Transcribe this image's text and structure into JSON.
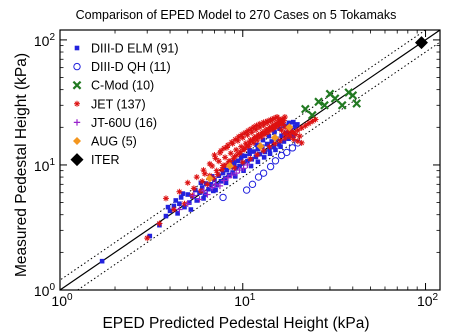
{
  "chart_data": {
    "type": "scatter",
    "title": "Comparison of EPED Model to 270 Cases on 5 Tokamaks",
    "xlabel": "EPED Predicted Pedestal Height (kPa)",
    "ylabel": "Measured Pedestal Height (kPa)",
    "xscale": "log",
    "yscale": "log",
    "xlim": [
      1,
      120
    ],
    "ylim": [
      1,
      120
    ],
    "x_ticks": [
      {
        "value": 1,
        "base": "10",
        "exp": "0"
      },
      {
        "value": 10,
        "base": "10",
        "exp": "1"
      },
      {
        "value": 100,
        "base": "10",
        "exp": "2"
      }
    ],
    "y_ticks": [
      {
        "value": 1,
        "base": "10",
        "exp": "0"
      },
      {
        "value": 10,
        "base": "10",
        "exp": "1"
      },
      {
        "value": 100,
        "base": "10",
        "exp": "2"
      }
    ],
    "legend_position": "top-left",
    "reference_lines": [
      {
        "slope": 1.0,
        "style": "solid"
      },
      {
        "slope": 1.2,
        "style": "dotted"
      },
      {
        "slope": 0.8,
        "style": "dotted"
      }
    ],
    "series": [
      {
        "name": "DIII-D ELM (91)",
        "marker": "square",
        "color": "#2222dd",
        "points": [
          [
            1.7,
            1.7
          ],
          [
            3.1,
            2.7
          ],
          [
            3.5,
            3.3
          ],
          [
            3.8,
            3.9
          ],
          [
            4.0,
            4.3
          ],
          [
            4.2,
            4.7
          ],
          [
            4.3,
            5.2
          ],
          [
            4.5,
            4.9
          ],
          [
            4.6,
            5.5
          ],
          [
            4.8,
            4.6
          ],
          [
            5.0,
            5.8
          ],
          [
            5.1,
            5.0
          ],
          [
            5.3,
            5.6
          ],
          [
            5.5,
            6.3
          ],
          [
            5.6,
            5.2
          ],
          [
            5.8,
            6.0
          ],
          [
            6.0,
            6.6
          ],
          [
            6.2,
            5.8
          ],
          [
            6.3,
            7.1
          ],
          [
            6.5,
            6.4
          ],
          [
            6.7,
            7.0
          ],
          [
            6.9,
            6.2
          ],
          [
            7.0,
            7.6
          ],
          [
            7.2,
            6.9
          ],
          [
            7.4,
            8.2
          ],
          [
            7.6,
            7.4
          ],
          [
            7.8,
            8.6
          ],
          [
            8.0,
            7.8
          ],
          [
            8.2,
            9.1
          ],
          [
            8.4,
            8.3
          ],
          [
            8.6,
            9.6
          ],
          [
            8.8,
            8.7
          ],
          [
            9.0,
            10.2
          ],
          [
            9.2,
            9.4
          ],
          [
            9.4,
            10.8
          ],
          [
            9.6,
            9.8
          ],
          [
            9.8,
            11.3
          ],
          [
            10.0,
            10.3
          ],
          [
            10.3,
            11.8
          ],
          [
            10.6,
            10.7
          ],
          [
            10.9,
            12.3
          ],
          [
            11.2,
            11.1
          ],
          [
            11.5,
            12.8
          ],
          [
            11.8,
            11.6
          ],
          [
            12.1,
            13.4
          ],
          [
            12.4,
            12.2
          ],
          [
            12.8,
            14.0
          ],
          [
            13.2,
            12.7
          ],
          [
            13.6,
            14.7
          ],
          [
            14.0,
            13.3
          ],
          [
            14.4,
            15.4
          ],
          [
            14.8,
            13.9
          ],
          [
            15.3,
            16.2
          ],
          [
            15.8,
            14.6
          ],
          [
            16.3,
            17.1
          ],
          [
            16.8,
            15.4
          ],
          [
            17.3,
            18.0
          ],
          [
            17.8,
            16.2
          ],
          [
            18.3,
            19.0
          ],
          [
            18.8,
            17.1
          ],
          [
            19.3,
            20.2
          ],
          [
            4.4,
            4.1
          ],
          [
            5.2,
            4.4
          ],
          [
            6.1,
            5.4
          ],
          [
            7.1,
            6.3
          ],
          [
            8.1,
            7.2
          ],
          [
            9.1,
            8.1
          ],
          [
            10.1,
            9.0
          ],
          [
            11.1,
            9.8
          ],
          [
            12.1,
            10.6
          ],
          [
            13.1,
            11.5
          ],
          [
            14.1,
            12.3
          ],
          [
            15.1,
            13.2
          ],
          [
            16.1,
            14.0
          ],
          [
            3.9,
            4.6
          ],
          [
            4.7,
            5.9
          ],
          [
            5.9,
            7.2
          ],
          [
            6.8,
            8.1
          ],
          [
            7.9,
            9.4
          ],
          [
            8.9,
            10.6
          ],
          [
            9.9,
            11.9
          ],
          [
            10.9,
            13.1
          ],
          [
            11.9,
            14.5
          ],
          [
            12.9,
            15.8
          ],
          [
            13.9,
            17.0
          ],
          [
            14.9,
            18.3
          ],
          [
            15.9,
            19.5
          ],
          [
            16.9,
            20.6
          ],
          [
            17.9,
            21.7
          ],
          [
            18.9,
            22.0
          ],
          [
            19.9,
            21.1
          ]
        ]
      },
      {
        "name": "DIII-D QH (11)",
        "marker": "open-circle",
        "color": "#2222dd",
        "points": [
          [
            7.8,
            5.5
          ],
          [
            10.5,
            6.3
          ],
          [
            11.3,
            7.0
          ],
          [
            12.2,
            8.0
          ],
          [
            13.0,
            8.6
          ],
          [
            14.2,
            9.7
          ],
          [
            15.1,
            10.8
          ],
          [
            16.3,
            11.9
          ],
          [
            17.4,
            12.6
          ],
          [
            18.7,
            13.7
          ],
          [
            20.0,
            15.0
          ]
        ]
      },
      {
        "name": "C-Mod (10)",
        "marker": "x",
        "color": "#227a22",
        "points": [
          [
            22.0,
            28.0
          ],
          [
            24.0,
            25.0
          ],
          [
            26.0,
            32.0
          ],
          [
            28.0,
            30.0
          ],
          [
            30.0,
            37.0
          ],
          [
            32.0,
            34.0
          ],
          [
            35.0,
            30.0
          ],
          [
            38.0,
            38.0
          ],
          [
            40.0,
            36.0
          ],
          [
            42.0,
            31.0
          ]
        ]
      },
      {
        "name": "JET (137)",
        "marker": "asterisk",
        "color": "#dd1111",
        "points": [
          [
            3.0,
            2.6
          ],
          [
            3.5,
            3.4
          ],
          [
            3.8,
            5.4
          ],
          [
            4.2,
            4.4
          ],
          [
            4.5,
            6.1
          ],
          [
            4.8,
            4.9
          ],
          [
            5.0,
            7.2
          ],
          [
            5.3,
            5.7
          ],
          [
            5.6,
            8.0
          ],
          [
            5.9,
            6.2
          ],
          [
            6.1,
            9.1
          ],
          [
            6.4,
            7.0
          ],
          [
            6.6,
            10.2
          ],
          [
            6.9,
            7.8
          ],
          [
            7.1,
            11.3
          ],
          [
            7.3,
            8.4
          ],
          [
            7.5,
            12.5
          ],
          [
            7.7,
            9.2
          ],
          [
            7.9,
            13.6
          ],
          [
            8.1,
            10.0
          ],
          [
            8.3,
            14.4
          ],
          [
            8.5,
            10.6
          ],
          [
            8.7,
            15.2
          ],
          [
            8.9,
            11.3
          ],
          [
            9.1,
            16.0
          ],
          [
            9.3,
            12.0
          ],
          [
            9.5,
            16.8
          ],
          [
            9.7,
            12.7
          ],
          [
            9.9,
            17.5
          ],
          [
            10.1,
            13.4
          ],
          [
            10.3,
            18.1
          ],
          [
            10.5,
            14.2
          ],
          [
            10.7,
            18.8
          ],
          [
            10.9,
            15.0
          ],
          [
            11.1,
            19.4
          ],
          [
            11.3,
            15.7
          ],
          [
            11.5,
            20.1
          ],
          [
            11.7,
            16.4
          ],
          [
            11.9,
            20.7
          ],
          [
            12.1,
            17.0
          ],
          [
            12.4,
            21.3
          ],
          [
            12.7,
            17.7
          ],
          [
            13.0,
            21.9
          ],
          [
            13.3,
            18.3
          ],
          [
            13.6,
            22.4
          ],
          [
            13.9,
            19.0
          ],
          [
            14.2,
            23.0
          ],
          [
            14.5,
            19.6
          ],
          [
            14.8,
            23.6
          ],
          [
            15.1,
            20.1
          ],
          [
            15.4,
            24.0
          ],
          [
            15.7,
            20.7
          ],
          [
            16.0,
            22.5
          ],
          [
            16.3,
            19.0
          ],
          [
            16.6,
            21.0
          ],
          [
            16.9,
            18.0
          ],
          [
            17.2,
            20.0
          ],
          [
            17.5,
            17.5
          ],
          [
            17.8,
            19.0
          ],
          [
            18.2,
            16.8
          ],
          [
            18.6,
            18.5
          ],
          [
            19.0,
            16.0
          ],
          [
            19.5,
            17.5
          ],
          [
            20.0,
            15.5
          ],
          [
            20.5,
            17.0
          ],
          [
            21.0,
            15.0
          ],
          [
            6.2,
            8.5
          ],
          [
            6.8,
            9.8
          ],
          [
            7.4,
            10.7
          ],
          [
            8.0,
            11.5
          ],
          [
            8.6,
            12.4
          ],
          [
            9.2,
            13.2
          ],
          [
            9.8,
            14.0
          ],
          [
            10.4,
            14.9
          ],
          [
            11.0,
            15.8
          ],
          [
            11.6,
            16.6
          ],
          [
            12.2,
            17.4
          ],
          [
            12.8,
            18.2
          ],
          [
            13.4,
            19.1
          ],
          [
            14.0,
            19.9
          ],
          [
            14.6,
            20.8
          ],
          [
            15.2,
            21.6
          ],
          [
            15.8,
            22.5
          ],
          [
            16.4,
            23.3
          ],
          [
            17.0,
            24.2
          ],
          [
            5.4,
            6.5
          ],
          [
            6.0,
            7.4
          ],
          [
            6.6,
            8.2
          ],
          [
            7.2,
            9.0
          ],
          [
            7.8,
            9.9
          ],
          [
            8.4,
            10.7
          ],
          [
            9.0,
            11.6
          ],
          [
            9.6,
            12.4
          ],
          [
            10.2,
            13.3
          ],
          [
            10.8,
            14.1
          ],
          [
            11.4,
            15.0
          ],
          [
            12.0,
            15.8
          ],
          [
            12.6,
            16.7
          ],
          [
            13.2,
            17.5
          ],
          [
            13.8,
            18.3
          ],
          [
            14.4,
            19.2
          ],
          [
            15.0,
            20.0
          ],
          [
            15.6,
            20.9
          ],
          [
            16.2,
            21.7
          ],
          [
            16.8,
            22.6
          ],
          [
            7.0,
            12.0
          ],
          [
            7.6,
            13.0
          ],
          [
            8.2,
            13.8
          ],
          [
            8.8,
            14.8
          ],
          [
            9.4,
            15.6
          ],
          [
            10.0,
            16.5
          ],
          [
            10.6,
            17.4
          ],
          [
            11.2,
            18.2
          ],
          [
            11.8,
            19.1
          ],
          [
            12.4,
            20.0
          ],
          [
            13.0,
            20.8
          ],
          [
            13.6,
            21.7
          ],
          [
            14.2,
            22.5
          ],
          [
            14.8,
            23.4
          ],
          [
            15.4,
            24.2
          ],
          [
            9.0,
            9.5
          ],
          [
            10.0,
            10.5
          ],
          [
            11.0,
            11.2
          ],
          [
            12.0,
            12.1
          ],
          [
            13.0,
            13.0
          ],
          [
            14.0,
            14.0
          ],
          [
            15.0,
            14.8
          ],
          [
            16.0,
            15.6
          ],
          [
            17.0,
            16.4
          ],
          [
            18.0,
            17.3
          ],
          [
            19.0,
            18.1
          ],
          [
            20.0,
            18.9
          ],
          [
            21.0,
            19.8
          ],
          [
            22.0,
            20.6
          ],
          [
            23.0,
            21.5
          ],
          [
            24.0,
            22.3
          ],
          [
            25.0,
            23.1
          ]
        ]
      },
      {
        "name": "JT-60U (16)",
        "marker": "plus",
        "color": "#9922cc",
        "points": [
          [
            4.5,
            4.4
          ],
          [
            5.0,
            4.9
          ],
          [
            5.4,
            5.7
          ],
          [
            5.8,
            5.3
          ],
          [
            6.1,
            6.2
          ],
          [
            6.4,
            5.8
          ],
          [
            6.8,
            6.6
          ],
          [
            7.1,
            7.0
          ],
          [
            7.5,
            6.8
          ],
          [
            7.9,
            7.5
          ],
          [
            8.3,
            7.9
          ],
          [
            8.7,
            8.3
          ],
          [
            9.2,
            8.6
          ],
          [
            9.6,
            9.1
          ],
          [
            10.1,
            9.4
          ],
          [
            10.6,
            10.0
          ]
        ]
      },
      {
        "name": "AUG (5)",
        "marker": "diamond",
        "color": "#f4961e",
        "points": [
          [
            6.6,
            7.8
          ],
          [
            8.5,
            9.8
          ],
          [
            12.5,
            14.1
          ],
          [
            15.0,
            16.5
          ],
          [
            18.0,
            20.0
          ]
        ]
      },
      {
        "name": "ITER",
        "marker": "big-diamond",
        "color": "#000000",
        "points": [
          [
            95.0,
            95.0
          ]
        ]
      }
    ]
  }
}
